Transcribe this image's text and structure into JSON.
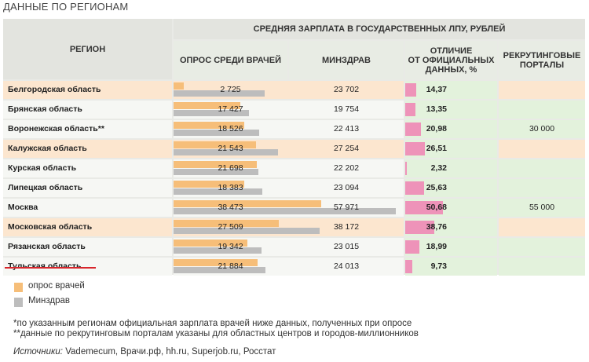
{
  "title": "ДАННЫЕ ПО РЕГИОНАМ",
  "headers": {
    "region": "РЕГИОН",
    "salary_group": "СРЕДНЯЯ ЗАРПЛАТА В ГОСУДАРСТВЕННЫХ ЛПУ, РУБЛЕЙ",
    "survey_l1": "ОПРОС СРЕДИ ВРАЧЕЙ",
    "minzdrav": "МИНЗДРАВ",
    "diff_l1": "ОТЛИЧИЕ",
    "diff_l2": "ОТ ОФИЦИАЛЬНЫХ",
    "diff_l3": "ДАННЫХ, %",
    "portals_l1": "РЕКРУТИНГОВЫЕ",
    "portals_l2": "ПОРТАЛЫ"
  },
  "chart_data": {
    "type": "bar",
    "title": "СРЕДНЯЯ ЗАРПЛАТА В ГОСУДАРСТВЕННЫХ ЛПУ, РУБЛЕЙ",
    "categories": [
      "Белгородская область",
      "Брянская область",
      "Воронежская область**",
      "Калужская область",
      "Курская область",
      "Липецкая область",
      "Москва",
      "Московская область",
      "Рязанская область",
      "Тульская область"
    ],
    "series": [
      {
        "name": "опрос врачей",
        "color": "#f6be79",
        "values": [
          2725,
          17427,
          18526,
          21543,
          21698,
          18383,
          38473,
          27509,
          19342,
          21884
        ]
      },
      {
        "name": "Минздрав",
        "color": "#bdbdbd",
        "values": [
          23702,
          19754,
          22413,
          27254,
          22202,
          23094,
          57971,
          38172,
          23015,
          24013
        ]
      }
    ],
    "survey_labels": [
      "2 725",
      "17 427",
      "18 526",
      "21 543",
      "21 698",
      "18 383",
      "38 473",
      "27 509",
      "19 342",
      "21 884"
    ],
    "minzdrav_labels": [
      "23 702",
      "19 754",
      "22 413",
      "27 254",
      "22 202",
      "23 094",
      "57 971",
      "38 172",
      "23 015",
      "24 013"
    ],
    "difference_pct": [
      14.37,
      13.35,
      20.98,
      26.51,
      2.32,
      25.63,
      50.68,
      38.76,
      18.99,
      9.73
    ],
    "difference_labels": [
      "14,37",
      "13,35",
      "20,98",
      "26,51",
      "2,32",
      "25,63",
      "50,68",
      "38,76",
      "18,99",
      "9,73"
    ],
    "portals": [
      "",
      "",
      "30 000",
      "",
      "",
      "",
      "55 000",
      "",
      "",
      ""
    ],
    "highlighted_rows": [
      0,
      3,
      7
    ],
    "underlined_row": 9,
    "xlim": [
      0,
      60000
    ]
  },
  "legend": [
    {
      "label": "опрос врачей",
      "color": "#f6be79"
    },
    {
      "label": "Минздрав",
      "color": "#bdbdbd"
    }
  ],
  "notes": [
    "*по указанным регионам официальная зарплата врачей ниже данных, полученных при опросе",
    "**данные по рекрутинговым порталам указаны для областных центров и городов-миллионников"
  ],
  "source_label": "Источники:",
  "source_text": " Vademecum, Врачи.рф, hh.ru, Superjob.ru, Росстат",
  "colors": {
    "survey": "#f6be79",
    "minzdrav": "#bdbdbd",
    "difference": "#ee93b9",
    "row_highlight": "#fce6cf",
    "row_normal": "#f6f7f4",
    "green_cell": "#e3f2dc",
    "underline": "#d8262c"
  }
}
